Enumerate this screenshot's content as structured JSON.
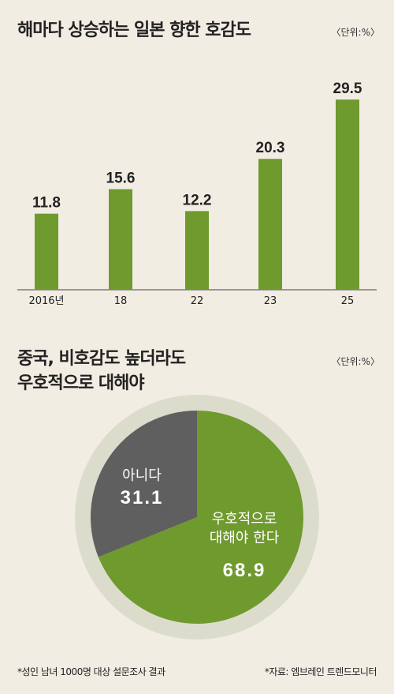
{
  "chart_data": [
    {
      "type": "bar",
      "title": "해마다 상승하는 일본 향한 호감도",
      "unit": "〈단위:%〉",
      "categories": [
        "2016년",
        "18",
        "22",
        "23",
        "25"
      ],
      "values": [
        11.8,
        15.6,
        12.2,
        20.3,
        29.5
      ],
      "value_labels": [
        "11.8",
        "15.6",
        "12.2",
        "20.3",
        "29.5"
      ],
      "ylim": [
        0,
        30
      ],
      "bar_color": "#6f9a2e",
      "grid": false
    },
    {
      "type": "pie",
      "title_lines": [
        "중국, 비호감도 높더라도",
        "우호적으로 대해야"
      ],
      "unit": "〈단위:%〉",
      "slices": [
        {
          "label_lines": [
            "우호적으로",
            "대해야 한다"
          ],
          "value": 68.9,
          "value_label": "68.9",
          "color": "#6f9a2e"
        },
        {
          "label_lines": [
            "아니다"
          ],
          "value": 31.1,
          "value_label": "31.1",
          "color": "#5f5f5f"
        }
      ],
      "ring_color": "#dcdccc"
    }
  ],
  "footnotes": {
    "left": "*성인 남녀 1000명 대상 설문조사 결과",
    "right": "*자료: 엠브레인 트렌드모니터"
  }
}
